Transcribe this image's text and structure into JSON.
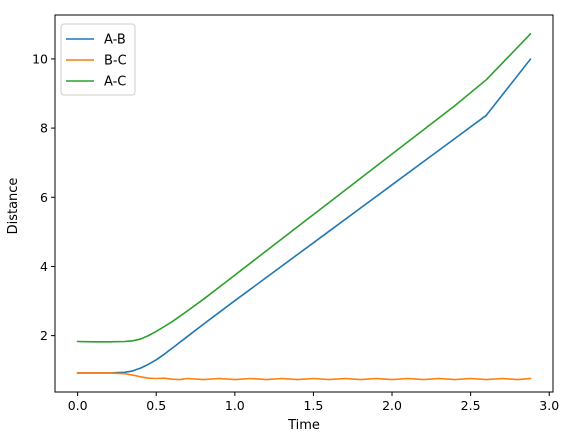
{
  "chart_data": {
    "type": "line",
    "xlabel": "Time",
    "ylabel": "Distance",
    "xlim": [
      -0.144,
      3.024
    ],
    "ylim": [
      0.37,
      11.27
    ],
    "xticks": [
      0.0,
      0.5,
      1.0,
      1.5,
      2.0,
      2.5,
      3.0
    ],
    "xtick_labels": [
      "0.0",
      "0.5",
      "1.0",
      "1.5",
      "2.0",
      "2.5",
      "3.0"
    ],
    "yticks": [
      2,
      4,
      6,
      8,
      10
    ],
    "ytick_labels": [
      "2",
      "4",
      "6",
      "8",
      "10"
    ],
    "grid": false,
    "legend_position": "top-left",
    "series": [
      {
        "name": "A-B",
        "color": "#1f77b4",
        "x": [
          0.0,
          0.1,
          0.2,
          0.3,
          0.35,
          0.4,
          0.45,
          0.5,
          0.55,
          0.6,
          0.7,
          0.8,
          0.9,
          1.0,
          1.2,
          1.4,
          1.6,
          1.8,
          2.0,
          2.2,
          2.4,
          2.6,
          2.88
        ],
        "y": [
          0.92,
          0.92,
          0.92,
          0.94,
          0.98,
          1.06,
          1.17,
          1.3,
          1.46,
          1.63,
          1.98,
          2.33,
          2.67,
          3.01,
          3.68,
          4.35,
          5.02,
          5.69,
          6.36,
          7.03,
          7.7,
          8.37,
          9.99
        ]
      },
      {
        "name": "B-C",
        "color": "#ff7f0e",
        "x": [
          0.0,
          0.1,
          0.2,
          0.3,
          0.35,
          0.4,
          0.45,
          0.5,
          0.55,
          0.6,
          0.65,
          0.7,
          0.8,
          0.9,
          1.0,
          1.1,
          1.2,
          1.3,
          1.4,
          1.5,
          1.6,
          1.7,
          1.8,
          1.9,
          2.0,
          2.1,
          2.2,
          2.3,
          2.4,
          2.5,
          2.6,
          2.7,
          2.8,
          2.88
        ],
        "y": [
          0.92,
          0.92,
          0.92,
          0.9,
          0.86,
          0.81,
          0.77,
          0.76,
          0.77,
          0.74,
          0.73,
          0.76,
          0.73,
          0.76,
          0.73,
          0.76,
          0.73,
          0.76,
          0.73,
          0.76,
          0.73,
          0.76,
          0.73,
          0.76,
          0.73,
          0.76,
          0.73,
          0.76,
          0.73,
          0.76,
          0.73,
          0.76,
          0.73,
          0.76
        ]
      },
      {
        "name": "A-C",
        "color": "#2ca02c",
        "x": [
          0.0,
          0.1,
          0.2,
          0.3,
          0.35,
          0.4,
          0.45,
          0.5,
          0.55,
          0.6,
          0.7,
          0.8,
          0.9,
          1.0,
          1.2,
          1.4,
          1.6,
          1.8,
          2.0,
          2.2,
          2.4,
          2.6,
          2.88
        ],
        "y": [
          1.83,
          1.82,
          1.82,
          1.83,
          1.85,
          1.9,
          2.0,
          2.12,
          2.26,
          2.4,
          2.72,
          3.05,
          3.4,
          3.75,
          4.45,
          5.15,
          5.85,
          6.55,
          7.25,
          7.95,
          8.65,
          9.4,
          10.72
        ]
      }
    ]
  }
}
